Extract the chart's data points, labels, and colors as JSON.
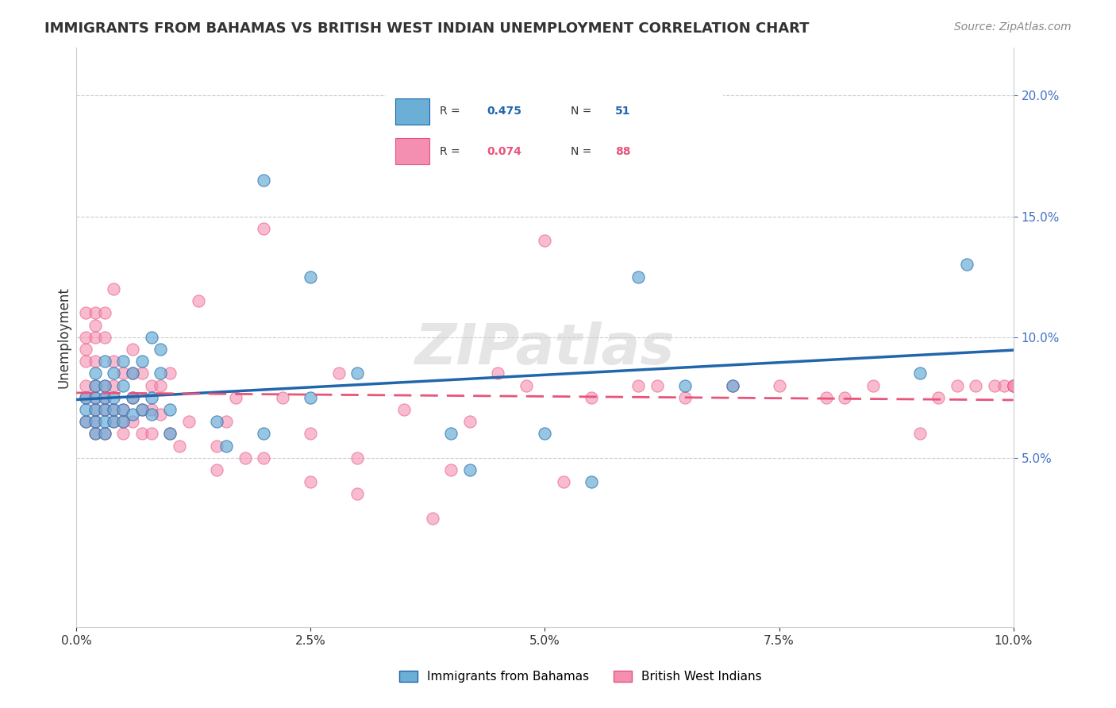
{
  "title": "IMMIGRANTS FROM BAHAMAS VS BRITISH WEST INDIAN UNEMPLOYMENT CORRELATION CHART",
  "source": "Source: ZipAtlas.com",
  "xlabel_bottom": "",
  "ylabel": "Unemployment",
  "legend_label1": "Immigrants from Bahamas",
  "legend_label2": "British West Indians",
  "R1": 0.475,
  "N1": 51,
  "R2": 0.074,
  "N2": 88,
  "xlim": [
    0.0,
    0.1
  ],
  "ylim": [
    -0.02,
    0.22
  ],
  "color_blue": "#6baed6",
  "color_pink": "#f48fb1",
  "color_blue_line": "#2166ac",
  "color_pink_line": "#e8547a",
  "watermark": "ZIPatlas",
  "blue_x": [
    0.001,
    0.001,
    0.001,
    0.002,
    0.002,
    0.002,
    0.002,
    0.002,
    0.002,
    0.003,
    0.003,
    0.003,
    0.003,
    0.003,
    0.003,
    0.004,
    0.004,
    0.004,
    0.004,
    0.005,
    0.005,
    0.005,
    0.005,
    0.006,
    0.006,
    0.006,
    0.007,
    0.007,
    0.008,
    0.008,
    0.008,
    0.009,
    0.009,
    0.01,
    0.01,
    0.015,
    0.016,
    0.02,
    0.02,
    0.025,
    0.025,
    0.03,
    0.04,
    0.042,
    0.05,
    0.055,
    0.06,
    0.065,
    0.07,
    0.09,
    0.095
  ],
  "blue_y": [
    0.065,
    0.07,
    0.075,
    0.06,
    0.065,
    0.07,
    0.075,
    0.08,
    0.085,
    0.06,
    0.065,
    0.07,
    0.075,
    0.08,
    0.09,
    0.065,
    0.07,
    0.075,
    0.085,
    0.065,
    0.07,
    0.08,
    0.09,
    0.068,
    0.075,
    0.085,
    0.07,
    0.09,
    0.068,
    0.075,
    0.1,
    0.085,
    0.095,
    0.06,
    0.07,
    0.065,
    0.055,
    0.06,
    0.165,
    0.075,
    0.125,
    0.085,
    0.06,
    0.045,
    0.06,
    0.04,
    0.125,
    0.08,
    0.08,
    0.085,
    0.13
  ],
  "pink_x": [
    0.001,
    0.001,
    0.001,
    0.001,
    0.001,
    0.001,
    0.001,
    0.002,
    0.002,
    0.002,
    0.002,
    0.002,
    0.002,
    0.002,
    0.002,
    0.002,
    0.003,
    0.003,
    0.003,
    0.003,
    0.003,
    0.003,
    0.004,
    0.004,
    0.004,
    0.004,
    0.004,
    0.005,
    0.005,
    0.005,
    0.005,
    0.006,
    0.006,
    0.006,
    0.006,
    0.007,
    0.007,
    0.007,
    0.008,
    0.008,
    0.008,
    0.009,
    0.009,
    0.01,
    0.01,
    0.011,
    0.012,
    0.013,
    0.015,
    0.015,
    0.016,
    0.017,
    0.018,
    0.02,
    0.02,
    0.022,
    0.025,
    0.025,
    0.028,
    0.03,
    0.03,
    0.035,
    0.038,
    0.04,
    0.042,
    0.045,
    0.048,
    0.05,
    0.052,
    0.055,
    0.06,
    0.062,
    0.065,
    0.07,
    0.075,
    0.08,
    0.082,
    0.085,
    0.09,
    0.092,
    0.094,
    0.096,
    0.098,
    0.099,
    0.1,
    0.1,
    0.1,
    0.1
  ],
  "pink_y": [
    0.065,
    0.075,
    0.08,
    0.09,
    0.095,
    0.1,
    0.11,
    0.06,
    0.065,
    0.07,
    0.075,
    0.08,
    0.09,
    0.1,
    0.105,
    0.11,
    0.06,
    0.07,
    0.075,
    0.08,
    0.1,
    0.11,
    0.065,
    0.07,
    0.08,
    0.09,
    0.12,
    0.06,
    0.065,
    0.07,
    0.085,
    0.065,
    0.075,
    0.085,
    0.095,
    0.06,
    0.07,
    0.085,
    0.06,
    0.07,
    0.08,
    0.068,
    0.08,
    0.06,
    0.085,
    0.055,
    0.065,
    0.115,
    0.045,
    0.055,
    0.065,
    0.075,
    0.05,
    0.05,
    0.145,
    0.075,
    0.04,
    0.06,
    0.085,
    0.035,
    0.05,
    0.07,
    0.025,
    0.045,
    0.065,
    0.085,
    0.08,
    0.14,
    0.04,
    0.075,
    0.08,
    0.08,
    0.075,
    0.08,
    0.08,
    0.075,
    0.075,
    0.08,
    0.06,
    0.075,
    0.08,
    0.08,
    0.08,
    0.08,
    0.08,
    0.08,
    0.08,
    0.08
  ]
}
